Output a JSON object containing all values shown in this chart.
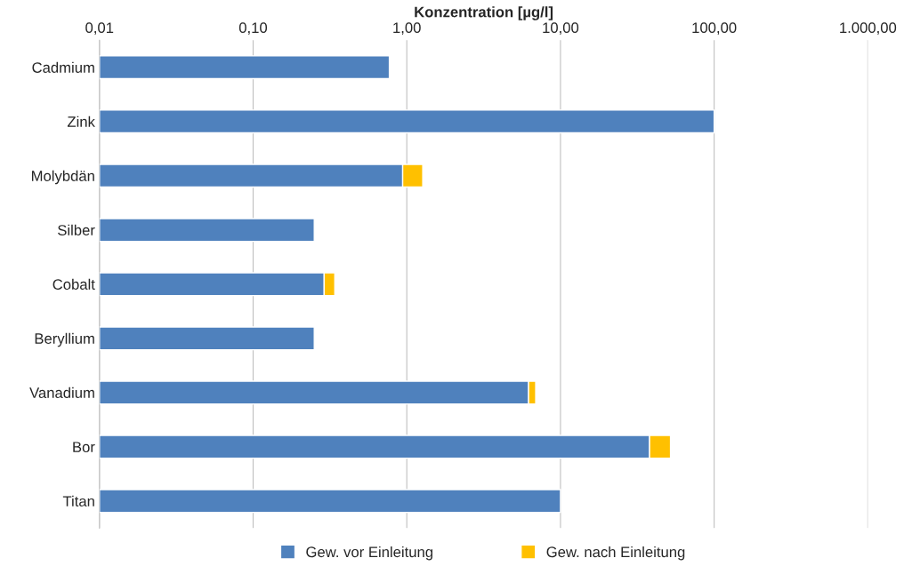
{
  "chart_data": {
    "type": "bar",
    "orientation": "horizontal",
    "stacked": true,
    "log": "x",
    "xlabel": "Konzentration [µg/l]",
    "categories": [
      "Cadmium",
      "Zink",
      "Molybdän",
      "Silber",
      "Cobalt",
      "Beryllium",
      "Vanadium",
      "Bor",
      "Titan"
    ],
    "series": [
      {
        "name": "Gew. vor Einleitung",
        "color": "#4f81bd",
        "values": [
          0.77,
          100,
          0.94,
          0.25,
          0.29,
          0.25,
          6.2,
          38,
          10
        ]
      },
      {
        "name": "Gew. nach Einleitung",
        "color": "#ffc000",
        "values": [
          null,
          null,
          0.33,
          null,
          0.05,
          null,
          0.7,
          14,
          null
        ]
      }
    ],
    "xlim": [
      0.01,
      1000
    ],
    "xticks": [
      {
        "value": 0.01,
        "label": "0,01"
      },
      {
        "value": 0.1,
        "label": "0,10"
      },
      {
        "value": 1,
        "label": "1,00"
      },
      {
        "value": 10,
        "label": "10,00"
      },
      {
        "value": 100,
        "label": "100,00"
      },
      {
        "value": 1000,
        "label": "1.000,00"
      }
    ],
    "grid": "x",
    "legend": "bottom"
  }
}
